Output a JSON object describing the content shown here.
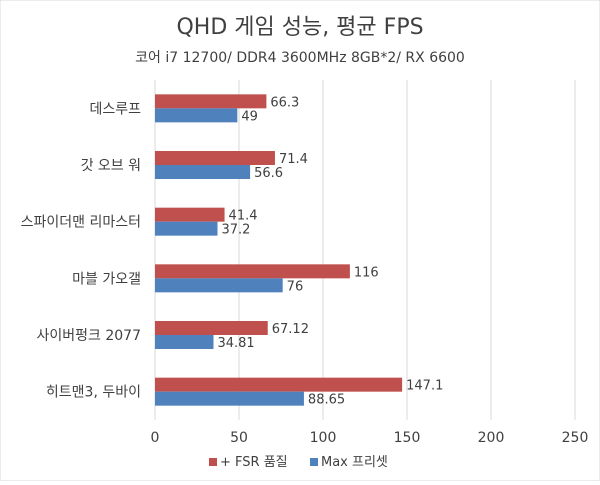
{
  "chart_data": {
    "type": "bar",
    "orientation": "horizontal",
    "title": "QHD 게임 성능, 평균 FPS",
    "subtitle": "코어 i7 12700/ DDR4 3600MHz 8GB*2/ RX 6600",
    "categories": [
      "데스루프",
      "갓 오브 워",
      "스파이더맨 리마스터",
      "마블 가오갤",
      "사이버펑크 2077",
      "히트맨3, 두바이"
    ],
    "series": [
      {
        "name": "+ FSR 품질",
        "color": "#c0504d",
        "values": [
          66.3,
          71.4,
          41.4,
          116,
          67.12,
          147.1
        ],
        "labels": [
          "66.3",
          "71.4",
          "41.4",
          "116",
          "67.12",
          "147.1"
        ]
      },
      {
        "name": "Max 프리셋",
        "color": "#4f81bd",
        "values": [
          49,
          56.6,
          37.2,
          76,
          34.81,
          88.65
        ],
        "labels": [
          "49",
          "56.6",
          "37.2",
          "76",
          "34.81",
          "88.65"
        ]
      }
    ],
    "xlim": [
      0,
      250
    ],
    "xticks": [
      0,
      50,
      100,
      150,
      200,
      250
    ],
    "xtick_labels": [
      "0",
      "50",
      "100",
      "150",
      "200",
      "250"
    ],
    "grid": true,
    "legend_position": "bottom"
  }
}
